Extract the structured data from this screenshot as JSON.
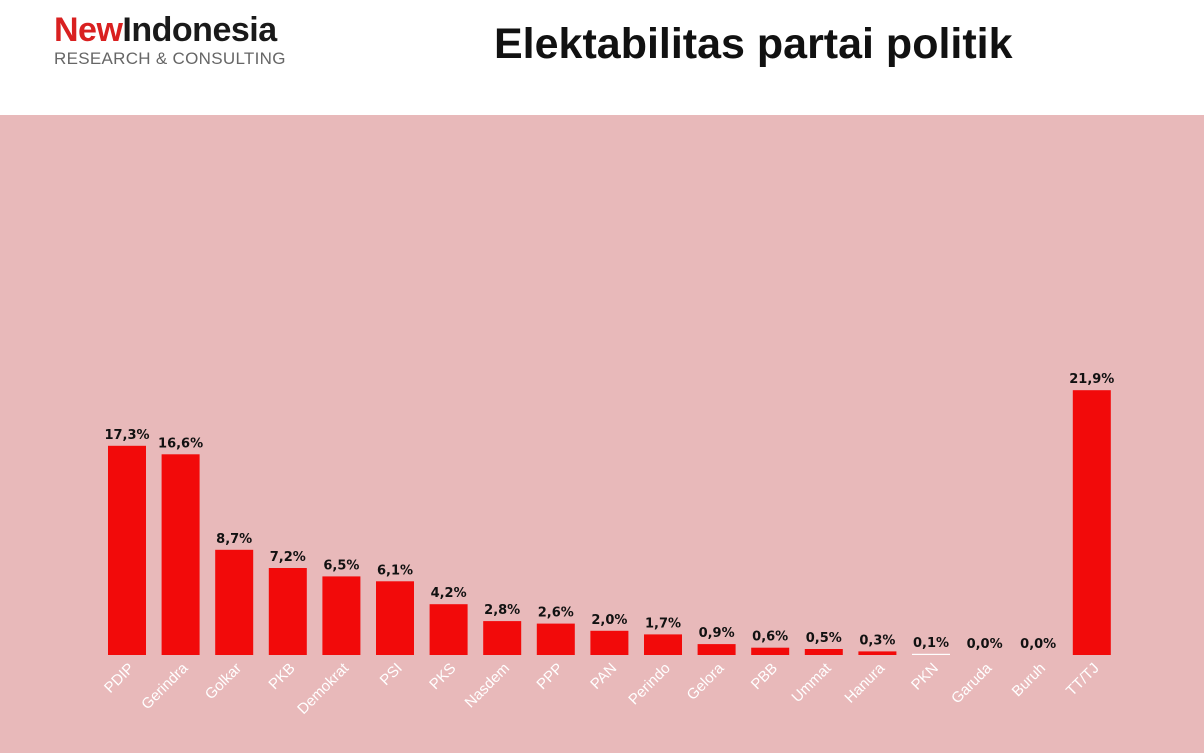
{
  "header": {
    "logo_part1": "New",
    "logo_part2": "Indonesia",
    "logo_sub": "RESEARCH & CONSULTING",
    "title": "Elektabilitas partai politik"
  },
  "colors": {
    "bar": "#f20a0a",
    "background": "#e8b9ba",
    "header_bg": "#ffffff",
    "accent": "#d92020"
  },
  "chart_data": {
    "type": "bar",
    "title": "Elektabilitas partai politik",
    "xlabel": "",
    "ylabel": "",
    "grid": false,
    "legend": "none",
    "ylim": [
      0,
      25
    ],
    "categories": [
      "PDIP",
      "Gerindra",
      "Golkar",
      "PKB",
      "Demokrat",
      "PSI",
      "PKS",
      "Nasdem",
      "PPP",
      "PAN",
      "Perindo",
      "Gelora",
      "PBB",
      "Ummat",
      "Hanura",
      "PKN",
      "Garuda",
      "Buruh",
      "TT/TJ"
    ],
    "values": [
      17.3,
      16.6,
      8.7,
      7.2,
      6.5,
      6.1,
      4.2,
      2.8,
      2.6,
      2.0,
      1.7,
      0.9,
      0.6,
      0.5,
      0.3,
      0.1,
      0.0,
      0.0,
      21.9
    ],
    "labels": [
      "17,3%",
      "16,6%",
      "8,7%",
      "7,2%",
      "6,5%",
      "6,1%",
      "4,2%",
      "2,8%",
      "2,6%",
      "2,0%",
      "1,7%",
      "0,9%",
      "0,6%",
      "0,5%",
      "0,3%",
      "0,1%",
      "0,0%",
      "0,0%",
      "21,9%"
    ]
  }
}
